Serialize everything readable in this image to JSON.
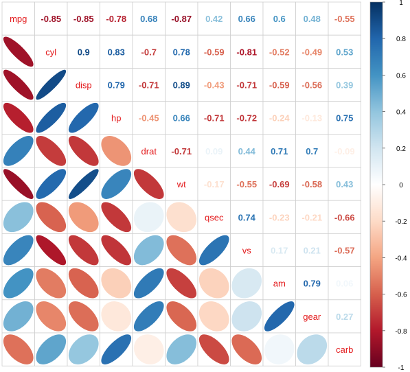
{
  "chart_data": {
    "type": "heatmap",
    "variables": [
      "mpg",
      "cyl",
      "disp",
      "hp",
      "drat",
      "wt",
      "qsec",
      "vs",
      "am",
      "gear",
      "carb"
    ],
    "matrix": [
      [
        1,
        -0.85,
        -0.85,
        -0.78,
        0.68,
        -0.87,
        0.42,
        0.66,
        0.6,
        0.48,
        -0.55
      ],
      [
        -0.85,
        1,
        0.9,
        0.83,
        -0.7,
        0.78,
        -0.59,
        -0.81,
        -0.52,
        -0.49,
        0.53
      ],
      [
        -0.85,
        0.9,
        1,
        0.79,
        -0.71,
        0.89,
        -0.43,
        -0.71,
        -0.59,
        -0.56,
        0.39
      ],
      [
        -0.78,
        0.83,
        0.79,
        1,
        -0.45,
        0.66,
        -0.71,
        -0.72,
        -0.24,
        -0.13,
        0.75
      ],
      [
        0.68,
        -0.7,
        -0.71,
        -0.45,
        1,
        -0.71,
        0.09,
        0.44,
        0.71,
        0.7,
        -0.09
      ],
      [
        -0.87,
        0.78,
        0.89,
        0.66,
        -0.71,
        1,
        -0.17,
        -0.55,
        -0.69,
        -0.58,
        0.43
      ],
      [
        0.42,
        -0.59,
        -0.43,
        -0.71,
        0.09,
        -0.17,
        1,
        0.74,
        -0.23,
        -0.21,
        -0.66
      ],
      [
        0.66,
        -0.81,
        -0.71,
        -0.72,
        0.44,
        -0.55,
        0.74,
        1,
        0.17,
        0.21,
        -0.57
      ],
      [
        0.6,
        -0.52,
        -0.59,
        -0.24,
        0.71,
        -0.69,
        -0.23,
        0.17,
        1,
        0.79,
        0.06
      ],
      [
        0.48,
        -0.49,
        -0.56,
        -0.13,
        0.7,
        -0.58,
        -0.21,
        0.21,
        0.79,
        1,
        0.27
      ],
      [
        -0.55,
        0.53,
        0.39,
        0.75,
        -0.09,
        0.43,
        -0.66,
        -0.57,
        0.06,
        0.27,
        1
      ]
    ],
    "upper_method": "number",
    "lower_method": "ellipse",
    "diagonal": "variable names",
    "colorbar": {
      "ticks": [
        1,
        0.8,
        0.6,
        0.4,
        0.2,
        0,
        -0.2,
        -0.4,
        -0.6,
        -0.8,
        -1
      ],
      "range": [
        -1,
        1
      ]
    },
    "colors": {
      "low": "#67001f",
      "mid": "#ffffff",
      "high": "#053061",
      "label": "#e31a1c",
      "grid": "#cfcfcf"
    }
  }
}
